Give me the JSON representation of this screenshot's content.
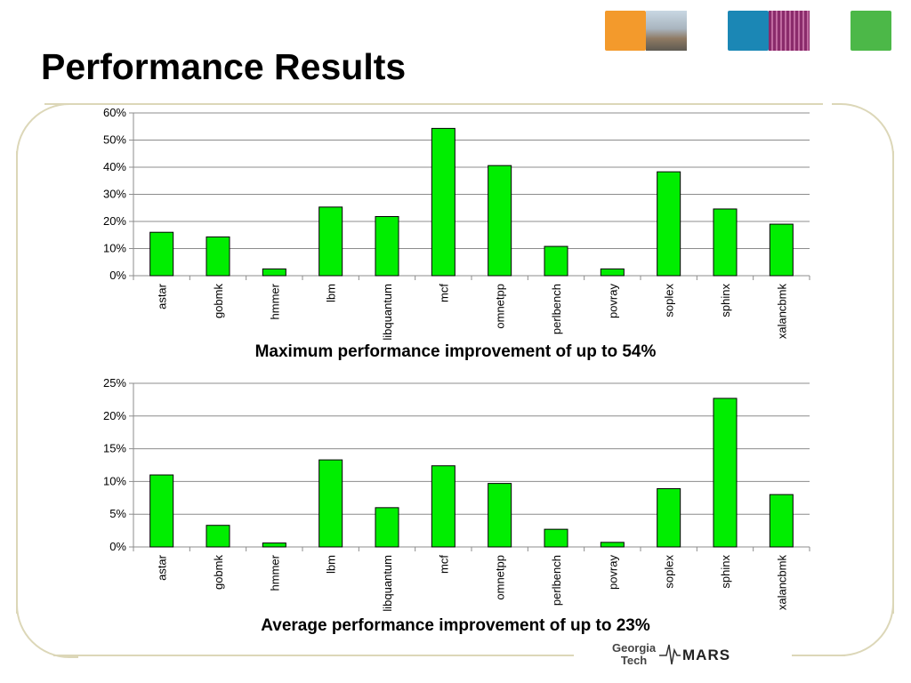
{
  "slide": {
    "title": "Performance Results",
    "caption_top": "Maximum performance improvement of up to 54%",
    "caption_bottom": "Average performance improvement of up to 23%",
    "logo": {
      "line1": "Georgia",
      "line2": "Tech",
      "mark": "MARS"
    },
    "colors": {
      "bar_fill": "#00ee00",
      "bar_stroke": "#000000",
      "frame": "#dcd7b8",
      "tile_orange": "#f39a2c",
      "tile_blue": "#1b87b5",
      "tile_green": "#4cb848"
    },
    "tiles": [
      "orange-square-icon",
      "campus-photo-icon",
      "blue-square-icon",
      "circuit-photo-icon",
      "green-square-icon"
    ]
  },
  "chart_data": [
    {
      "type": "bar",
      "title": "",
      "xlabel": "",
      "ylabel": "",
      "categories": [
        "astar",
        "gobmk",
        "hmmer",
        "lbm",
        "libquantum",
        "mcf",
        "omnetpp",
        "perlbench",
        "povray",
        "soplex",
        "sphinx",
        "xalancbmk"
      ],
      "values": [
        16,
        14.3,
        2.5,
        25.3,
        21.8,
        54.3,
        40.6,
        10.8,
        2.5,
        38.3,
        24.6,
        19
      ],
      "yticks": [
        "0%",
        "10%",
        "20%",
        "30%",
        "40%",
        "50%",
        "60%"
      ],
      "ylim": [
        0,
        60
      ],
      "grid": true,
      "legend": "none"
    },
    {
      "type": "bar",
      "title": "",
      "xlabel": "",
      "ylabel": "",
      "categories": [
        "astar",
        "gobmk",
        "hmmer",
        "lbm",
        "libquantum",
        "mcf",
        "omnetpp",
        "perlbench",
        "povray",
        "soplex",
        "sphinx",
        "xalancbmk"
      ],
      "values": [
        11,
        3.3,
        0.6,
        13.3,
        6,
        12.4,
        9.7,
        2.7,
        0.7,
        8.9,
        22.7,
        8
      ],
      "yticks": [
        "0%",
        "5%",
        "10%",
        "15%",
        "20%",
        "25%"
      ],
      "ylim": [
        0,
        25
      ],
      "grid": true,
      "legend": "none"
    }
  ]
}
